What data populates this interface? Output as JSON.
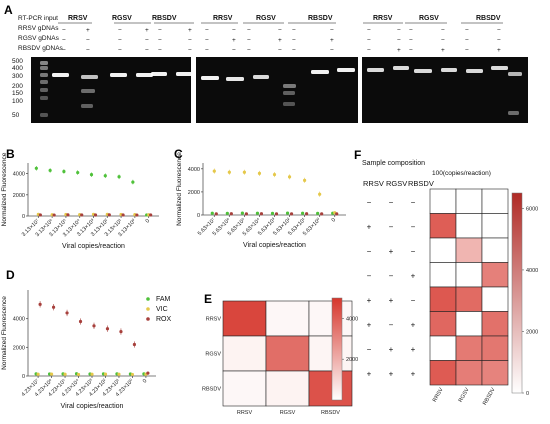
{
  "panels": [
    "A",
    "B",
    "C",
    "D",
    "E",
    "F"
  ],
  "gel": {
    "row_labels": [
      "RT-PCR input",
      "RRSV gDNAs",
      "RGSV gDNAs",
      "RBSDV gDNAs"
    ],
    "groups": [
      {
        "label": "RRSV",
        "signs": [
          [
            "−",
            "−",
            "−"
          ],
          [
            "−",
            "+",
            "−"
          ],
          [
            "−",
            "−",
            "−"
          ]
        ],
        "ladder": true
      },
      {
        "label": "RGSV",
        "signs": [
          [
            "−",
            "−",
            "−"
          ],
          [
            "+",
            "−",
            "+"
          ]
        ]
      },
      {
        "label": "RBSDV",
        "signs": [
          [
            "−",
            "+",
            "−"
          ],
          [
            "−",
            "−",
            "+"
          ]
        ]
      },
      {
        "label": "RRSV",
        "signs": [
          [
            "−",
            "−",
            "−"
          ],
          [
            "−",
            "+",
            "−"
          ]
        ]
      },
      {
        "label": "RGSV",
        "signs": [
          [
            "−",
            "−",
            "−"
          ],
          [
            "−",
            "+",
            "−"
          ]
        ]
      },
      {
        "label": "RBSDV",
        "signs": [
          [
            "−",
            "−",
            "−"
          ],
          [
            "−",
            "−",
            "+"
          ]
        ]
      },
      {
        "label": "RRSV",
        "signs": [
          [
            "−",
            "−",
            "−"
          ],
          [
            "−",
            "−",
            "+"
          ]
        ]
      },
      {
        "label": "RGSV",
        "signs": [
          [
            "−",
            "−",
            "−"
          ],
          [
            "−",
            "−",
            "+"
          ]
        ]
      },
      {
        "label": "RBSDV",
        "signs": [
          [
            "−",
            "−",
            "−"
          ],
          [
            "−",
            "−",
            "+"
          ]
        ]
      }
    ],
    "ladder": [
      "500",
      "400",
      "300",
      "200",
      "150",
      "100",
      "50"
    ]
  },
  "legend": [
    "FAM",
    "VIC",
    "ROX"
  ],
  "colors": {
    "FAM": "#4fc13a",
    "VIC": "#e5c84a",
    "ROX": "#a7403c"
  },
  "chart_data": [
    {
      "type": "scatter",
      "panel": "B",
      "ylabel": "Normalized Fluorescence",
      "xlabel": "Viral copies/reaction",
      "ylim": [
        0,
        5000
      ],
      "yticks": [
        0,
        2000,
        4000
      ],
      "categories": [
        "3.13×10⁷",
        "3.13×10⁶",
        "3.13×10⁵",
        "3.13×10⁴",
        "3.13×10³",
        "3.13×10²",
        "3.13×10¹",
        "3.13×10⁰",
        "0"
      ],
      "series": [
        {
          "name": "FAM",
          "values": [
            4500,
            4300,
            4200,
            4100,
            3900,
            3800,
            3700,
            3200,
            100
          ]
        },
        {
          "name": "VIC",
          "values": [
            150,
            120,
            140,
            130,
            160,
            150,
            140,
            130,
            120
          ]
        },
        {
          "name": "ROX",
          "values": [
            100,
            90,
            110,
            100,
            95,
            105,
            100,
            90,
            100
          ]
        }
      ]
    },
    {
      "type": "scatter",
      "panel": "C",
      "ylabel": "Normalized Fluorescence",
      "xlabel": "Viral copies/reaction",
      "ylim": [
        0,
        4500
      ],
      "yticks": [
        0,
        2000,
        4000
      ],
      "categories": [
        "5.63×10⁷",
        "5.63×10⁶",
        "5.63×10⁵",
        "5.63×10⁴",
        "5.63×10³",
        "5.63×10²",
        "5.63×10¹",
        "5.63×10⁰",
        "0"
      ],
      "series": [
        {
          "name": "FAM",
          "values": [
            150,
            140,
            160,
            150,
            140,
            160,
            150,
            140,
            150
          ]
        },
        {
          "name": "VIC",
          "values": [
            3800,
            3700,
            3700,
            3600,
            3500,
            3300,
            3000,
            1800,
            200
          ]
        },
        {
          "name": "ROX",
          "values": [
            100,
            110,
            100,
            105,
            95,
            100,
            110,
            100,
            100
          ]
        }
      ]
    },
    {
      "type": "scatter",
      "panel": "D",
      "ylabel": "Normalized Fluorescence",
      "xlabel": "Viral copies/reaction",
      "ylim": [
        0,
        6000
      ],
      "yticks": [
        0,
        2000,
        4000
      ],
      "categories": [
        "4.23×10⁷",
        "4.23×10⁶",
        "4.23×10⁵",
        "4.23×10⁴",
        "4.23×10³",
        "4.23×10²",
        "4.23×10¹",
        "4.23×10⁰",
        "0"
      ],
      "series": [
        {
          "name": "FAM",
          "values": [
            150,
            140,
            150,
            160,
            140,
            150,
            150,
            140,
            150
          ]
        },
        {
          "name": "VIC",
          "values": [
            120,
            130,
            120,
            110,
            120,
            130,
            120,
            110,
            120
          ]
        },
        {
          "name": "ROX",
          "values": [
            5000,
            4800,
            4400,
            3800,
            3500,
            3300,
            3100,
            2200,
            200
          ]
        }
      ]
    },
    {
      "type": "heatmap",
      "panel": "E",
      "rows": [
        "RRSV",
        "RGSV",
        "RBSDV"
      ],
      "columns": [
        "RRSV",
        "RGSV",
        "RBSDV"
      ],
      "values": [
        [
          4600,
          200,
          200
        ],
        [
          300,
          3600,
          250
        ],
        [
          200,
          300,
          4300
        ]
      ],
      "colorbar_ticks": [
        2000,
        4000
      ],
      "vmax": 5000
    },
    {
      "type": "heatmap",
      "panel": "F",
      "title": "100(copies/reaction)",
      "columns": [
        "RRSV",
        "RGSV",
        "RBSDV"
      ],
      "values": [
        [
          0,
          0,
          0
        ],
        [
          5200,
          0,
          0
        ],
        [
          0,
          2400,
          0
        ],
        [
          0,
          0,
          4100
        ],
        [
          5400,
          4800,
          0
        ],
        [
          4900,
          0,
          4600
        ],
        [
          0,
          4300,
          4400
        ],
        [
          5300,
          4200,
          4000
        ]
      ],
      "colorbar_ticks": [
        0,
        2000,
        4000,
        6000
      ],
      "vmax": 6500
    }
  ],
  "composition": {
    "title": "Sample composition",
    "headers": [
      "RRSV",
      "RGSV",
      "RBSDV"
    ],
    "rows": [
      [
        "−",
        "−",
        "−"
      ],
      [
        "+",
        "−",
        "−"
      ],
      [
        "−",
        "+",
        "−"
      ],
      [
        "−",
        "−",
        "+"
      ],
      [
        "+",
        "+",
        "−"
      ],
      [
        "+",
        "−",
        "+"
      ],
      [
        "−",
        "+",
        "+"
      ],
      [
        "+",
        "+",
        "+"
      ]
    ]
  }
}
